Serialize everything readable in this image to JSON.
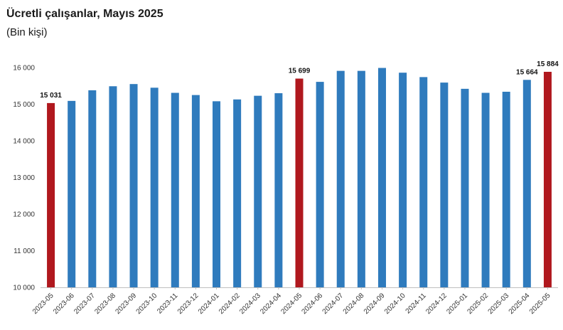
{
  "chart_data": {
    "type": "bar",
    "title": "Ücretli çalışanlar, Mayıs 2025",
    "subtitle": "(Bin kişi)",
    "xlabel": "",
    "ylabel": "",
    "ylim": [
      10000,
      16000
    ],
    "yticks": [
      10000,
      11000,
      12000,
      13000,
      14000,
      15000,
      16000
    ],
    "ytick_labels": [
      "10 000",
      "11 000",
      "12 000",
      "13 000",
      "14 000",
      "15 000",
      "16 000"
    ],
    "grid": false,
    "legend": "none",
    "categories": [
      "2023-05",
      "2023-06",
      "2023-07",
      "2023-08",
      "2023-09",
      "2023-10",
      "2023-11",
      "2023-12",
      "2024-01",
      "2024-02",
      "2024-03",
      "2024-04",
      "2024-05",
      "2024-06",
      "2024-07",
      "2024-08",
      "2024-09",
      "2024-10",
      "2024-11",
      "2024-12",
      "2025-01",
      "2025-02",
      "2025-03",
      "2025-04",
      "2025-05"
    ],
    "values": [
      15031,
      15090,
      15380,
      15490,
      15550,
      15450,
      15310,
      15250,
      15080,
      15130,
      15230,
      15300,
      15699,
      15610,
      15910,
      15910,
      15990,
      15860,
      15740,
      15590,
      15420,
      15310,
      15340,
      15664,
      15884
    ],
    "highlighted": [
      "2023-05",
      "2024-05",
      "2025-05"
    ],
    "data_labels": [
      {
        "category": "2023-05",
        "text": "15 031"
      },
      {
        "category": "2024-05",
        "text": "15 699"
      },
      {
        "category": "2025-04",
        "text": "15 664"
      },
      {
        "category": "2025-05",
        "text": "15 884"
      }
    ],
    "colors": {
      "default": "#2f7bbd",
      "highlight": "#b0181e",
      "axis": "#bfbfbf"
    }
  }
}
